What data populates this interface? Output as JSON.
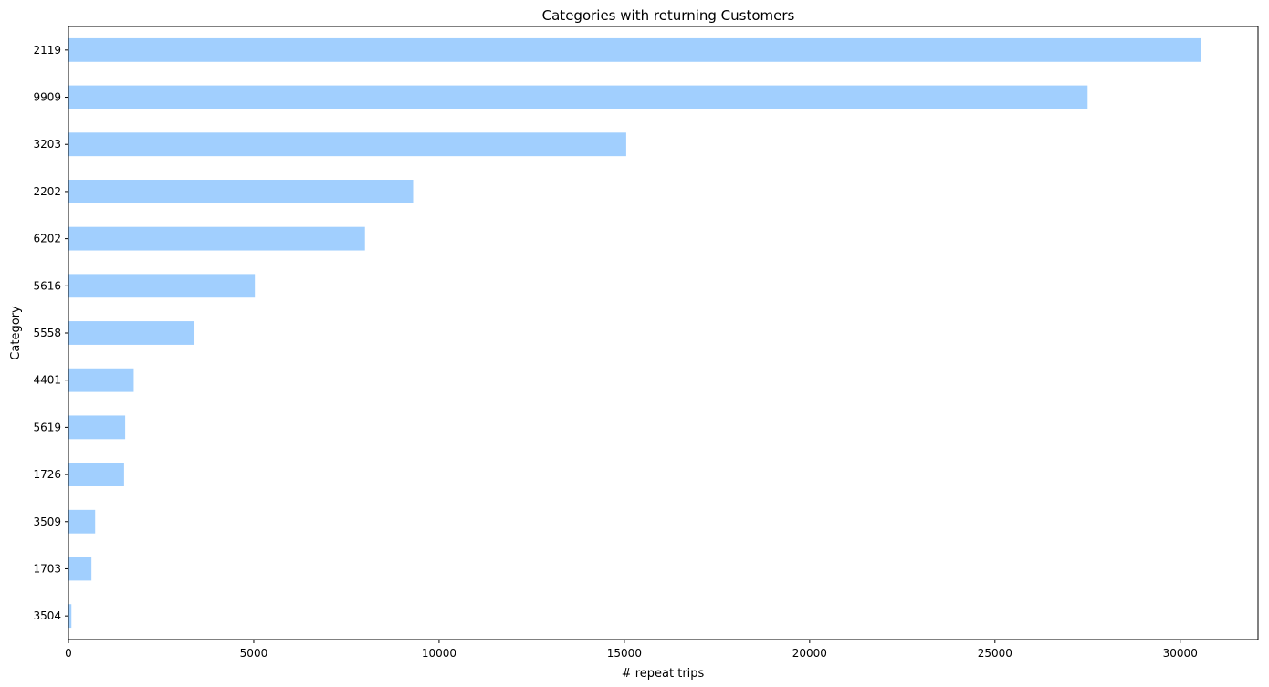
{
  "chart_data": {
    "type": "bar",
    "orientation": "horizontal",
    "title": "Categories with returning Customers",
    "xlabel": "# repeat trips",
    "ylabel": "Category",
    "categories": [
      "2119",
      "9909",
      "3203",
      "2202",
      "6202",
      "5616",
      "5558",
      "4401",
      "5619",
      "1726",
      "3509",
      "1703",
      "3504"
    ],
    "values": [
      30550,
      27500,
      15050,
      9300,
      8000,
      5030,
      3400,
      1760,
      1530,
      1500,
      720,
      620,
      80
    ],
    "xlim": [
      0,
      32100
    ],
    "xticks": [
      "0",
      "5000",
      "10000",
      "15000",
      "20000",
      "25000",
      "30000"
    ],
    "bar_color": "#a1cffe",
    "grid": false,
    "legend": "none"
  }
}
